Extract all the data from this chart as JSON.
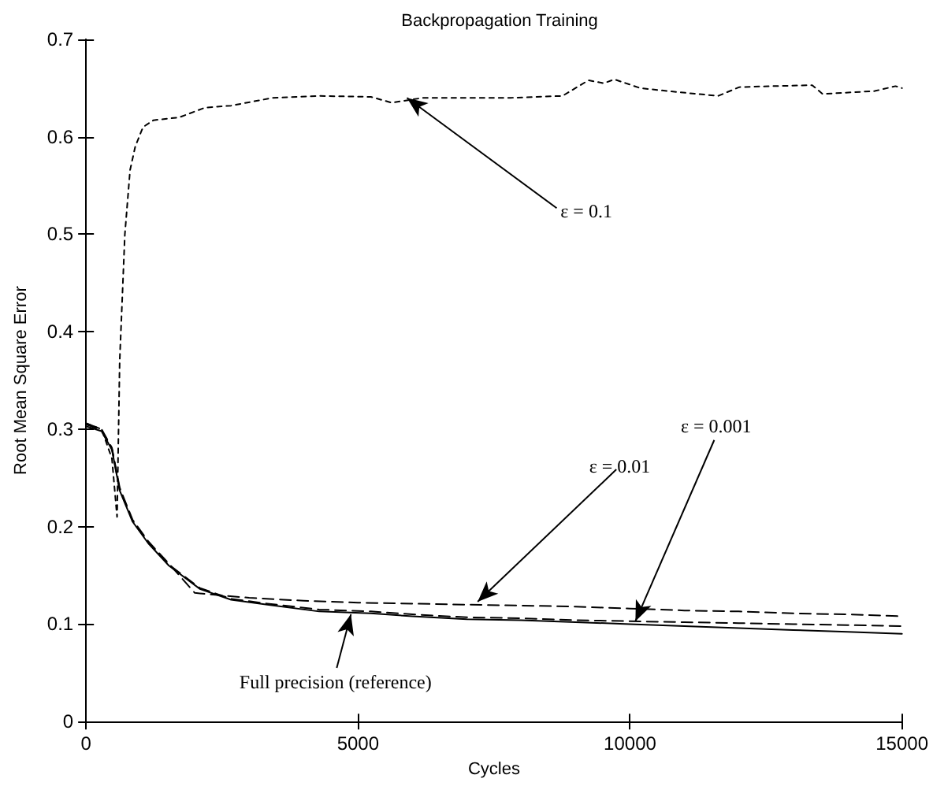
{
  "chart_data": {
    "type": "line",
    "title": "Backpropagation Training",
    "xlabel": "Cycles",
    "ylabel": "Root Mean Square Error",
    "xlim": [
      0,
      15000
    ],
    "xticks": [
      0,
      5000,
      10000,
      15000
    ],
    "ylim": [
      0,
      0.7
    ],
    "yticks": [
      0,
      0.1,
      0.2,
      0.3,
      0.4,
      0.5,
      0.6,
      0.7
    ],
    "grid": false,
    "marker": "none",
    "series": [
      {
        "color": "#000000",
        "line_style": "solid",
        "x": [
          0,
          286,
          476,
          619,
          857,
          1143,
          1524,
          2095,
          2667,
          3333,
          4286,
          5238,
          6000,
          7000,
          8000,
          9000,
          10000,
          11000,
          12000,
          13000,
          14000,
          15000
        ],
        "values": [
          0.303,
          0.298,
          0.279,
          0.237,
          0.205,
          0.183,
          0.16,
          0.136,
          0.125,
          0.12,
          0.113,
          0.111,
          0.108,
          0.105,
          0.104,
          0.102,
          0.1,
          0.098,
          0.096,
          0.094,
          0.092,
          0.09
        ]
      },
      {
        "color": "#000000",
        "line_style": "dashed",
        "x": [
          0,
          286,
          476,
          619,
          857,
          1143,
          1524,
          2095,
          2667,
          3333,
          4286,
          5238,
          6000,
          7000,
          8000,
          9000,
          10000,
          11000,
          12000,
          13000,
          14000,
          15000
        ],
        "values": [
          0.305,
          0.299,
          0.28,
          0.238,
          0.206,
          0.184,
          0.161,
          0.137,
          0.126,
          0.121,
          0.115,
          0.113,
          0.11,
          0.107,
          0.106,
          0.104,
          0.103,
          0.102,
          0.101,
          0.1,
          0.099,
          0.098
        ]
      },
      {
        "color": "#000000",
        "line_style": "dashed",
        "x": [
          0,
          286,
          476,
          619,
          857,
          1143,
          1524,
          2000,
          3000,
          4000,
          5000,
          6000,
          7000,
          8000,
          9000,
          10000,
          11000,
          12000,
          13000,
          14000,
          15000
        ],
        "values": [
          0.306,
          0.3,
          0.281,
          0.24,
          0.207,
          0.185,
          0.162,
          0.132,
          0.127,
          0.124,
          0.122,
          0.121,
          0.12,
          0.119,
          0.118,
          0.116,
          0.114,
          0.113,
          0.111,
          0.11,
          0.108
        ]
      },
      {
        "color": "#000000",
        "line_style": "dotted",
        "x": [
          0,
          286,
          476,
          571,
          619,
          714,
          810,
          905,
          1048,
          1238,
          1714,
          2190,
          2667,
          3429,
          4286,
          5238,
          5619,
          6190,
          7800,
          8760,
          9235,
          9520,
          9710,
          10190,
          10860,
          11620,
          12010,
          12580,
          13350,
          13540,
          14500,
          14880,
          15000
        ],
        "values": [
          0.306,
          0.3,
          0.27,
          0.21,
          0.37,
          0.5,
          0.566,
          0.59,
          0.61,
          0.617,
          0.62,
          0.63,
          0.632,
          0.64,
          0.642,
          0.641,
          0.635,
          0.64,
          0.64,
          0.642,
          0.658,
          0.655,
          0.659,
          0.65,
          0.646,
          0.642,
          0.651,
          0.652,
          0.653,
          0.644,
          0.647,
          0.652,
          0.65
        ]
      }
    ],
    "annotations": [
      {
        "text": "ε = 0.1",
        "x": 5900,
        "y": 0.64
      },
      {
        "text": "ε = 0.01",
        "x": 7200,
        "y": 0.123
      },
      {
        "text": "ε = 0.001",
        "x": 10100,
        "y": 0.103
      },
      {
        "text": "Full precision (reference)",
        "x": 4870,
        "y": 0.11
      }
    ]
  }
}
